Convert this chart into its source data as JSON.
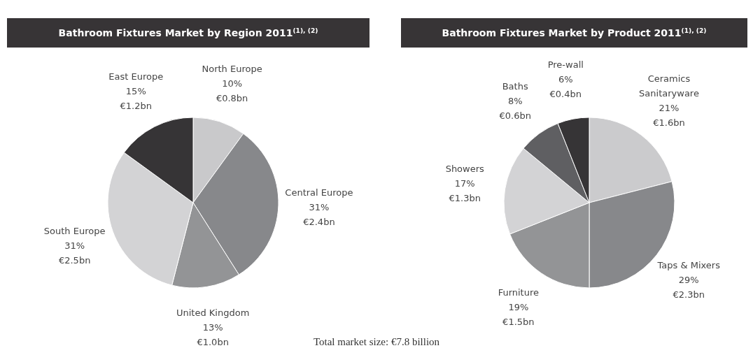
{
  "chart_data": [
    {
      "type": "pie",
      "title": "Bathroom Fixtures Market by Region 2011$^{(1), (2)}$",
      "categories": [
        "North Europe",
        "Central Europe",
        "United Kingdom",
        "South Europe",
        "East Europe"
      ],
      "values": [
        10,
        31,
        13,
        31,
        15
      ],
      "value_labels": [
        "10%\n€0.8bn",
        "31%\n€2.4bn",
        "13%\n€1.0bn",
        "31%\n€2.5bn",
        "15%\n€1.2bn"
      ],
      "colors": [
        "#c9c9cb",
        "#87888b",
        "#939496",
        "#d3d3d5",
        "#363436"
      ],
      "annotations": [
        "Total market size: €7.8 billion"
      ]
    },
    {
      "type": "pie",
      "title": "Bathroom Fixtures Market by Product 2011$^{(1), (2)}$",
      "categories": [
        "Ceramics Sanitaryware",
        "Taps & Mixers",
        "Furniture",
        "Showers",
        "Baths",
        "Pre-wall"
      ],
      "values": [
        21,
        29,
        19,
        17,
        8,
        6
      ],
      "value_labels": [
        "21%\n€1.6bn",
        "29%\n€2.3bn",
        "19%\n€1.5bn",
        "17%\n€1.3bn",
        "8%\n€0.6bn",
        "6%\n€0.4bn"
      ],
      "colors": [
        "#cbcbcd",
        "#87888b",
        "#939496",
        "#d3d3d5",
        "#5f5f62",
        "#363436"
      ]
    }
  ]
}
